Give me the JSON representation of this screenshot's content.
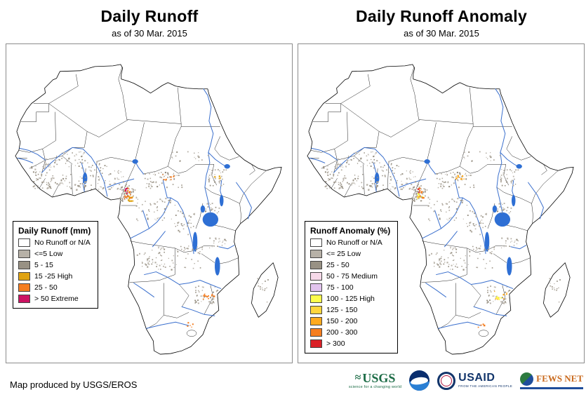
{
  "panels": {
    "left": {
      "title": "Daily Runoff",
      "subtitle": "as of 30 Mar. 2015",
      "legend": {
        "title": "Daily Runoff (mm)",
        "items": [
          {
            "label": "No Runoff or N/A",
            "color": "#ffffff"
          },
          {
            "label": "<=5 Low",
            "color": "#b7b1a7"
          },
          {
            "label": "5 - 15",
            "color": "#989184"
          },
          {
            "label": "15 -25 High",
            "color": "#e0a311"
          },
          {
            "label": "25 - 50",
            "color": "#f47d21"
          },
          {
            "label": "> 50 Extreme",
            "color": "#cc1262"
          }
        ]
      }
    },
    "right": {
      "title": "Daily Runoff Anomaly",
      "subtitle": "as of 30 Mar. 2015",
      "legend": {
        "title": "Runoff Anomaly (%)",
        "items": [
          {
            "label": "No Runoff or N/A",
            "color": "#ffffff"
          },
          {
            "label": "<= 25 Low",
            "color": "#b7b1a7"
          },
          {
            "label": "25 - 50",
            "color": "#989184"
          },
          {
            "label": "50 - 75 Medium",
            "color": "#f6d9e9"
          },
          {
            "label": "75 - 100",
            "color": "#e2c4ee"
          },
          {
            "label": "100 - 125 High",
            "color": "#fdfd4c"
          },
          {
            "label": "125 - 150",
            "color": "#ffd63c"
          },
          {
            "label": "150 - 200",
            "color": "#ffaa1e"
          },
          {
            "label": "200 - 300",
            "color": "#f57e20"
          },
          {
            "label": "> 300",
            "color": "#da2127"
          }
        ]
      }
    }
  },
  "footer": {
    "credit": "Map produced by USGS/EROS",
    "logos": {
      "usgs": {
        "name": "USGS",
        "tagline": "science for a changing world"
      },
      "noaa": {
        "name": "NOAA"
      },
      "usaid": {
        "name": "USAID",
        "tagline": "FROM THE AMERICAN PEOPLE"
      },
      "fewsnet": {
        "name": "FEWS NET"
      }
    }
  },
  "map": {
    "land_color": "#ffffff",
    "outline_color": "#000000",
    "river_color": "#3a6fcd",
    "lake_color": "#2e6fd4",
    "speckle_light": "#b7b1a7",
    "speckle_dark": "#989184"
  }
}
